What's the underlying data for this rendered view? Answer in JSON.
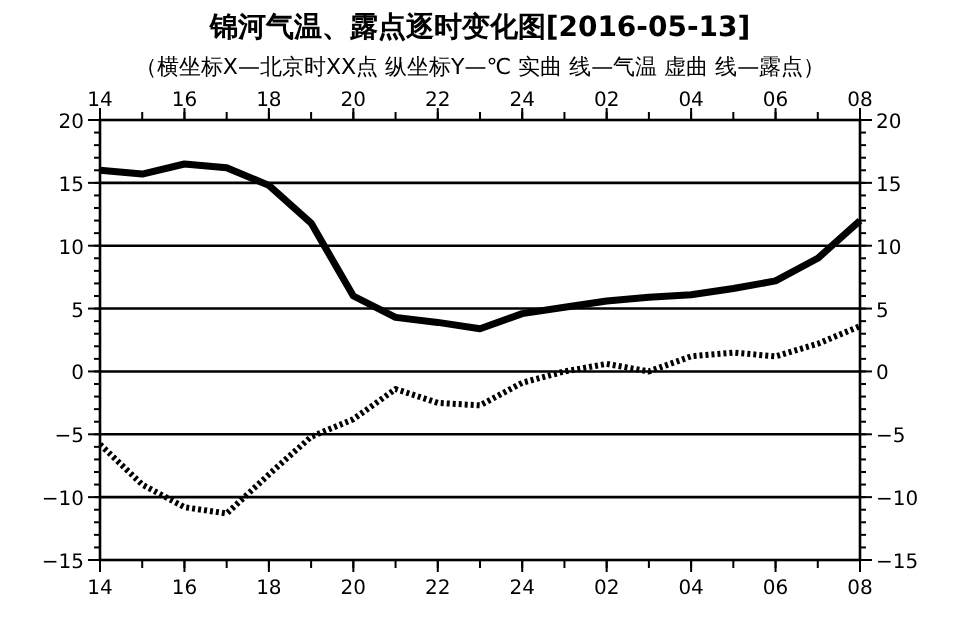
{
  "chart_data": {
    "type": "line",
    "title": "锦河气温、露点逐时变化图[2016-05-13]",
    "subtitle": "（横坐标X—北京时XX点  纵坐标Y—℃  实曲 线—气温  虚曲 线—露点）",
    "x": [
      "2016-05-12T14:00",
      "2016-05-12T15:00",
      "2016-05-12T16:00",
      "2016-05-12T17:00",
      "2016-05-12T18:00",
      "2016-05-12T19:00",
      "2016-05-12T20:00",
      "2016-05-12T21:00",
      "2016-05-12T22:00",
      "2016-05-12T23:00",
      "2016-05-13T00:00",
      "2016-05-13T01:00",
      "2016-05-13T02:00",
      "2016-05-13T03:00",
      "2016-05-13T04:00",
      "2016-05-13T05:00",
      "2016-05-13T06:00",
      "2016-05-13T07:00",
      "2016-05-13T08:00"
    ],
    "series": [
      {
        "color": "#000000",
        "line_style": "solid",
        "values": [
          16.0,
          15.7,
          16.5,
          16.2,
          14.8,
          11.8,
          6.0,
          4.3,
          3.9,
          3.4,
          4.6,
          5.1,
          5.6,
          5.9,
          6.1,
          6.6,
          7.2,
          9.0,
          12.0
        ]
      },
      {
        "color": "#000000",
        "line_style": "dotted",
        "values": [
          -5.8,
          -9.0,
          -10.8,
          -11.3,
          -8.2,
          -5.2,
          -3.8,
          -1.4,
          -2.5,
          -2.7,
          -0.9,
          0.0,
          0.6,
          0.0,
          1.2,
          1.5,
          1.2,
          2.2,
          3.6
        ]
      }
    ],
    "xlim": [
      "2016-05-12T14:00",
      "2016-05-13T08:00"
    ],
    "xticks": [
      {
        "value": "2016-05-12T14:00",
        "label": "14"
      },
      {
        "value": "2016-05-12T16:00",
        "label": "16"
      },
      {
        "value": "2016-05-12T18:00",
        "label": "18"
      },
      {
        "value": "2016-05-12T20:00",
        "label": "20"
      },
      {
        "value": "2016-05-12T22:00",
        "label": "22"
      },
      {
        "value": "2016-05-13T00:00",
        "label": "24"
      },
      {
        "value": "2016-05-13T02:00",
        "label": "02"
      },
      {
        "value": "2016-05-13T04:00",
        "label": "04"
      },
      {
        "value": "2016-05-13T06:00",
        "label": "06"
      },
      {
        "value": "2016-05-13T08:00",
        "label": "08"
      }
    ],
    "x2lim": [
      "2016-05-12T14:00",
      "2016-05-13T08:00"
    ],
    "x2ticks": [
      {
        "value": "2016-05-12T14:00",
        "label": "14"
      },
      {
        "value": "2016-05-12T16:00",
        "label": "16"
      },
      {
        "value": "2016-05-12T18:00",
        "label": "18"
      },
      {
        "value": "2016-05-12T20:00",
        "label": "20"
      },
      {
        "value": "2016-05-12T22:00",
        "label": "22"
      },
      {
        "value": "2016-05-13T00:00",
        "label": "24"
      },
      {
        "value": "2016-05-13T02:00",
        "label": "02"
      },
      {
        "value": "2016-05-13T04:00",
        "label": "04"
      },
      {
        "value": "2016-05-13T06:00",
        "label": "06"
      },
      {
        "value": "2016-05-13T08:00",
        "label": "08"
      }
    ],
    "ylim": [
      -15,
      20
    ],
    "yticks": [
      -15,
      -10,
      -5,
      0,
      5,
      10,
      15,
      20
    ],
    "y2lim": [
      -15,
      20
    ],
    "y2ticks": [
      -15,
      -10,
      -5,
      0,
      5,
      10,
      15,
      20
    ],
    "grid": "y",
    "marker": "none"
  }
}
